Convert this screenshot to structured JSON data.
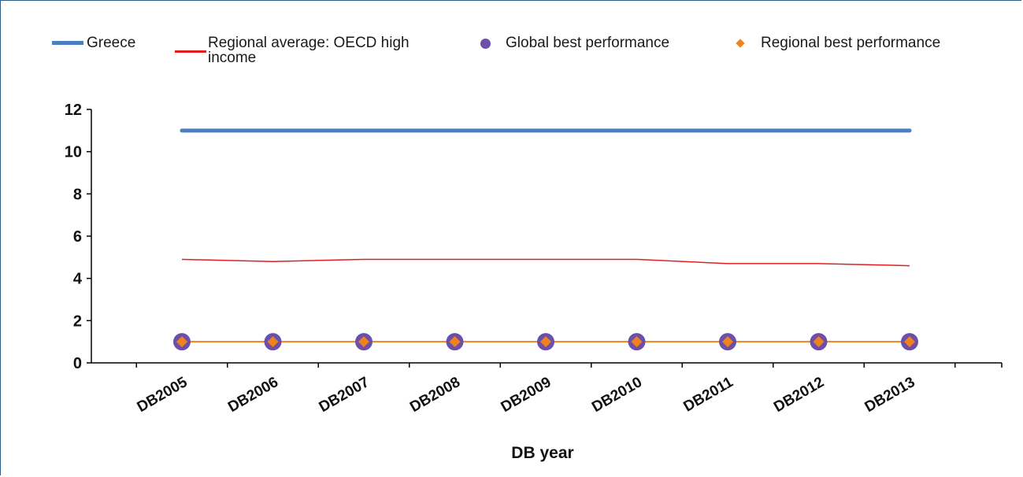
{
  "chart_data": {
    "type": "line",
    "categories": [
      "DB2005",
      "DB2006",
      "DB2007",
      "DB2008",
      "DB2009",
      "DB2010",
      "DB2011",
      "DB2012",
      "DB2013"
    ],
    "series": [
      {
        "name": "Greece",
        "values": [
          11,
          11,
          11,
          11,
          11,
          11,
          11,
          11,
          11
        ],
        "color": "#4a7fc1",
        "style": "thick-line"
      },
      {
        "name": "Regional average: OECD high\nincome",
        "values": [
          4.9,
          4.8,
          4.9,
          4.9,
          4.9,
          4.9,
          4.7,
          4.7,
          4.6
        ],
        "color": "#e02020",
        "style": "thin-line"
      },
      {
        "name": "Global best performance",
        "values": [
          1,
          1,
          1,
          1,
          1,
          1,
          1,
          1,
          1
        ],
        "color": "#6b4fa8",
        "style": "circle-marker"
      },
      {
        "name": "Regional best performance",
        "values": [
          1,
          1,
          1,
          1,
          1,
          1,
          1,
          1,
          1
        ],
        "color": "#f0821e",
        "style": "diamond-marker-line"
      }
    ],
    "xlabel": "DB year",
    "ylabel": "",
    "ylim": [
      0,
      12
    ],
    "yticks": [
      0,
      2,
      4,
      6,
      8,
      10,
      12
    ],
    "grid": false,
    "legend_position": "top"
  }
}
